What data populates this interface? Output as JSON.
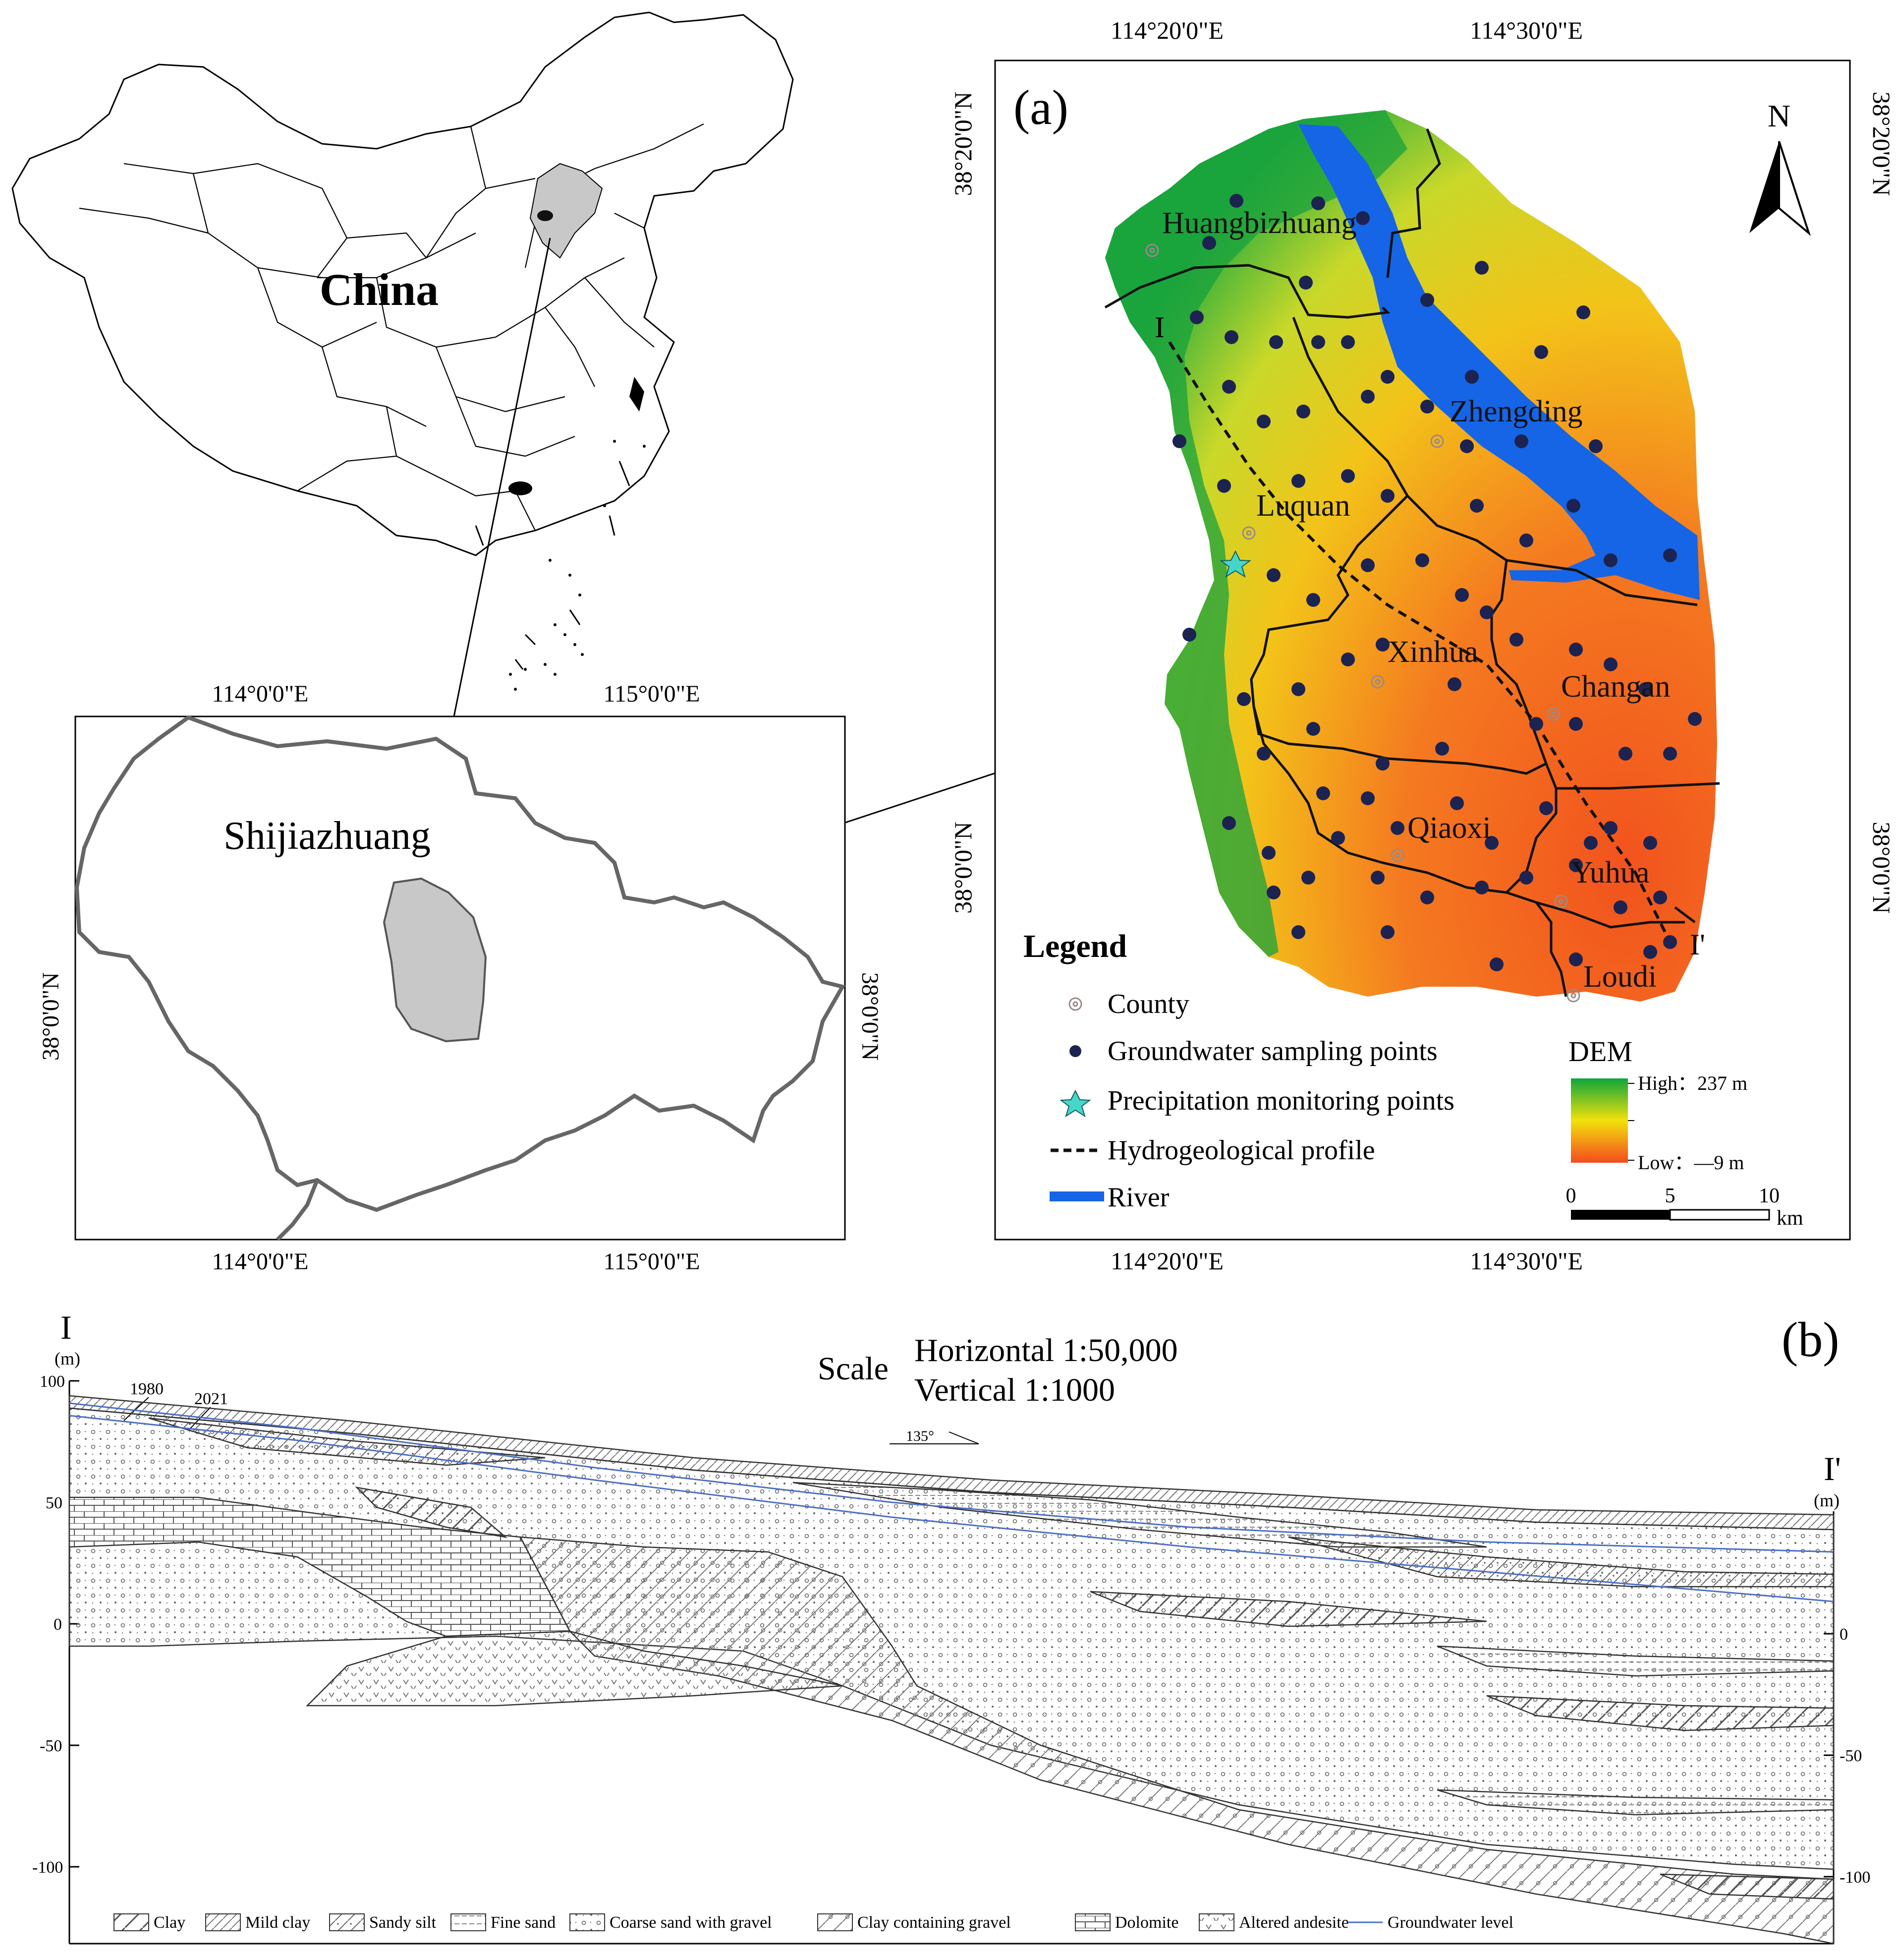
{
  "china_map": {
    "label": "China"
  },
  "inset_map": {
    "label": "Shijiazhuang",
    "lon_top": [
      "114°0'0\"E",
      "115°0'0\"E"
    ],
    "lon_bottom": [
      "114°0'0\"E",
      "115°0'0\"E"
    ],
    "lat_left": "38°0'0\"N",
    "lat_right": "38°0'0\"N"
  },
  "panel_a": {
    "tag": "(a)",
    "lon_top": [
      "114°20'0\"E",
      "114°30'0\"E"
    ],
    "lon_bottom": [
      "114°20'0\"E",
      "114°30'0\"E"
    ],
    "lat_left": [
      "38°20'0\"N",
      "38°0'0\"N"
    ],
    "lat_right": [
      "38°20'0\"N",
      "38°0'0\"N"
    ],
    "north_label": "N",
    "districts": [
      "Huangbizhuang",
      "Zhengding",
      "Luquan",
      "Xinhua",
      "Changan",
      "Qiaoxi",
      "Yuhua",
      "Loudi"
    ],
    "profile_start": "I",
    "profile_end": "I'",
    "legend": {
      "title": "Legend",
      "items": [
        "County",
        "Groundwater sampling points",
        "Precipitation monitoring points",
        "Hydrogeological profile",
        "River"
      ]
    },
    "dem": {
      "title": "DEM",
      "high": "High：237 m",
      "low": "Low：—9 m",
      "colors": [
        "#0ea53a",
        "#f2e20c",
        "#f44a1d"
      ]
    },
    "scale_bar": {
      "ticks": [
        "0",
        "5",
        "10"
      ],
      "unit": "km"
    },
    "colors": {
      "river": "#1565e6",
      "points": "#1c2350",
      "star": "#46d6c9"
    }
  },
  "panel_b": {
    "tag": "(b)",
    "left_label": "I",
    "right_label": "I'",
    "unit": "(m)",
    "scale_word": "Scale",
    "horizontal": "Horizontal 1:50,000",
    "vertical": "Vertical 1:1000",
    "direction": "135°",
    "year_1980": "1980",
    "year_2021": "2021",
    "left_ticks": [
      "100",
      "50",
      "0",
      "-50",
      "-100"
    ],
    "right_ticks": [
      "0",
      "-50",
      "-100"
    ],
    "legend": [
      "Clay",
      "Mild clay",
      "Sandy silt",
      "Fine sand",
      "Coarse sand with gravel",
      "Clay containing gravel",
      "Dolomite",
      "Altered andesite",
      "Groundwater level"
    ]
  }
}
